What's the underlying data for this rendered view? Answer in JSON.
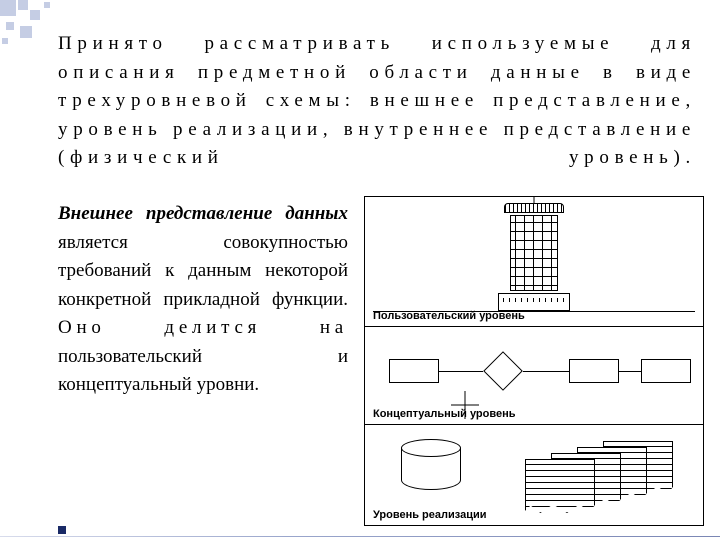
{
  "mainParagraph": "Принято рассматривать используемые для описания предметной области данные в виде трехуровневой схемы: внешнее представление, уровень реализации, внутреннее представление (физический уровень).",
  "leftParagraph": {
    "boldItalic": "Внешнее представление данных",
    "body1": " является совокупностью требований к данным некоторой конкретной прикладной функции. ",
    "spaced": "Оно делится на",
    "body2": " пользовательский и концептуальный уровни."
  },
  "diagram": {
    "tier1_label": "Пользовательский уровень",
    "tier2_label": "Концептуальный уровень",
    "tier3_label": "Уровень реализации"
  },
  "colors": {
    "deco": "#c5cde4",
    "deco_dark": "#aeb8d8",
    "bullet": "#1a2a66"
  }
}
